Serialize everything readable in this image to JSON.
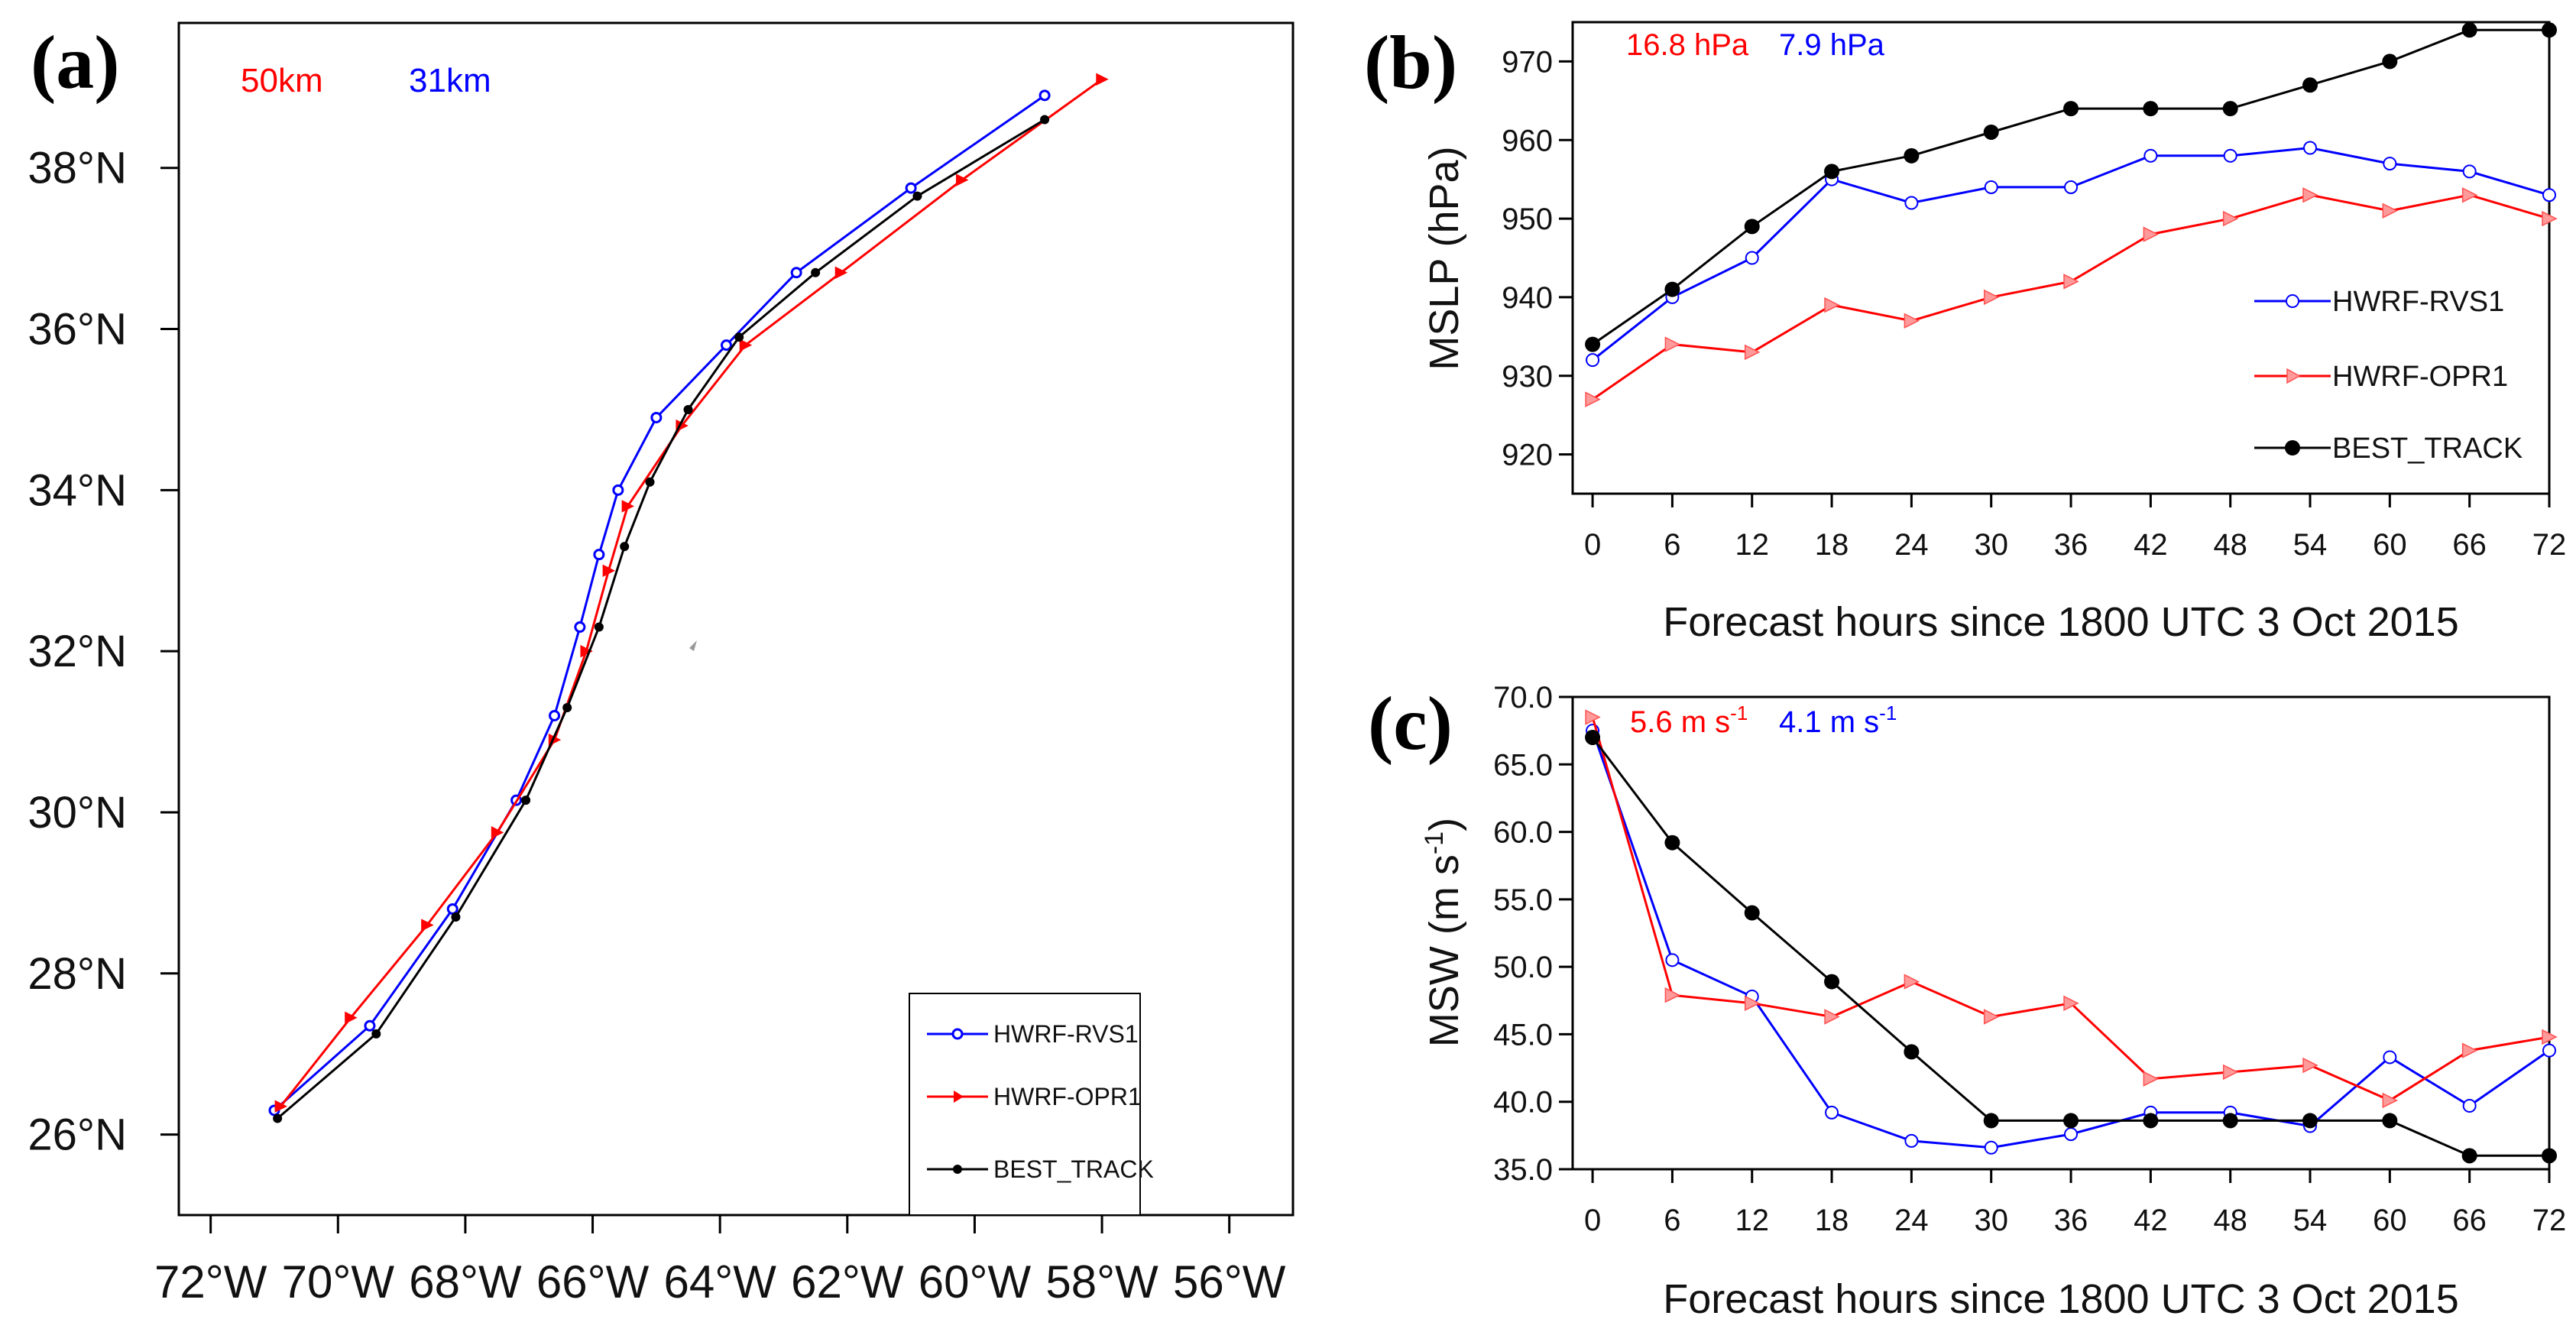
{
  "chart_data": [
    {
      "type": "line",
      "panel_label": "(a)",
      "title": "",
      "annotations": [
        {
          "text": "50km",
          "color": "#ff0000"
        },
        {
          "text": "31km",
          "color": "#0000ff"
        }
      ],
      "xlabel": "",
      "ylabel": "",
      "xlim": [
        -72.5,
        -55
      ],
      "ylim": [
        25,
        39.8
      ],
      "x_ticks": [
        -72,
        -70,
        -68,
        -66,
        -64,
        -62,
        -60,
        -58,
        -56
      ],
      "x_tick_labels": [
        "72°W",
        "70°W",
        "68°W",
        "66°W",
        "64°W",
        "62°W",
        "60°W",
        "58°W",
        "56°W"
      ],
      "y_ticks": [
        26,
        28,
        30,
        32,
        34,
        36,
        38
      ],
      "y_tick_labels": [
        "26°N",
        "28°N",
        "30°N",
        "32°N",
        "34°N",
        "36°N",
        "38°N"
      ],
      "legend": "bottom-right",
      "series": [
        {
          "name": "HWRF-RVS1",
          "color": "#0000ff",
          "marker": "circle-open",
          "x": [
            -71.0,
            -69.5,
            -68.2,
            -67.2,
            -66.6,
            -66.2,
            -65.9,
            -65.6,
            -65.0,
            -63.9,
            -62.8,
            -61.0,
            -58.9
          ],
          "y": [
            26.3,
            27.35,
            28.8,
            30.15,
            31.2,
            32.3,
            33.2,
            34.0,
            34.9,
            35.8,
            36.7,
            37.75,
            38.9
          ]
        },
        {
          "name": "HWRF-OPR1",
          "color": "#ff0000",
          "marker": "triangle-right",
          "x": [
            -70.9,
            -69.8,
            -68.6,
            -67.5,
            -66.6,
            -66.1,
            -65.75,
            -65.45,
            -64.6,
            -63.6,
            -62.1,
            -60.2,
            -58.0
          ],
          "y": [
            26.35,
            27.45,
            28.6,
            29.75,
            30.9,
            32.0,
            33.0,
            33.8,
            34.8,
            35.8,
            36.7,
            37.85,
            39.1
          ]
        },
        {
          "name": "BEST_TRACK",
          "color": "#000000",
          "marker": "circle-filled",
          "x": [
            -70.95,
            -69.4,
            -68.15,
            -67.05,
            -66.4,
            -65.9,
            -65.5,
            -65.1,
            -64.5,
            -63.7,
            -62.5,
            -60.9,
            -58.9
          ],
          "y": [
            26.2,
            27.25,
            28.7,
            30.15,
            31.3,
            32.3,
            33.3,
            34.1,
            35.0,
            35.9,
            36.7,
            37.65,
            38.6
          ]
        }
      ]
    },
    {
      "type": "line",
      "panel_label": "(b)",
      "title": "",
      "annotations": [
        {
          "text": "16.8 hPa",
          "color": "#ff0000"
        },
        {
          "text": "7.9 hPa",
          "color": "#0000ff"
        }
      ],
      "xlabel": "Forecast hours since 1800 UTC 3 Oct 2015",
      "ylabel": "MSLP (hPa)",
      "x": [
        0,
        6,
        12,
        18,
        24,
        30,
        36,
        42,
        48,
        54,
        60,
        66,
        72
      ],
      "xlim": [
        -1.5,
        72
      ],
      "ylim": [
        915,
        975
      ],
      "y_ticks": [
        920,
        930,
        940,
        950,
        960,
        970
      ],
      "y_tick_labels": [
        "920",
        "930",
        "940",
        "950",
        "960",
        "970"
      ],
      "legend": "right-middle",
      "series": [
        {
          "name": "HWRF-RVS1",
          "color": "#0000ff",
          "marker": "circle-open",
          "values": [
            932,
            940,
            945,
            955,
            952,
            954,
            954,
            958,
            958,
            959,
            957,
            956,
            953
          ]
        },
        {
          "name": "HWRF-OPR1",
          "color": "#ff0000",
          "marker": "triangle-right",
          "values": [
            927,
            934,
            933,
            939,
            937,
            940,
            942,
            948,
            950,
            953,
            951,
            953,
            950
          ]
        },
        {
          "name": "BEST_TRACK",
          "color": "#000000",
          "marker": "circle-filled",
          "values": [
            934,
            941,
            949,
            956,
            958,
            961,
            964,
            964,
            964,
            967,
            970,
            974,
            974
          ]
        }
      ]
    },
    {
      "type": "line",
      "panel_label": "(c)",
      "title": "",
      "annotations": [
        {
          "text": "5.6 m s",
          "sup": "-1",
          "color": "#ff0000"
        },
        {
          "text": "4.1 m s",
          "sup": "-1",
          "color": "#0000ff"
        }
      ],
      "xlabel": "Forecast hours since 1800 UTC 3 Oct 2015",
      "ylabel": "MSW (m s",
      "ylabel_sup": "-1",
      "ylabel_end": ")",
      "x": [
        0,
        6,
        12,
        18,
        24,
        30,
        36,
        42,
        48,
        54,
        60,
        66,
        72
      ],
      "xlim": [
        -1.5,
        72
      ],
      "ylim": [
        35,
        70
      ],
      "y_ticks": [
        35,
        40,
        45,
        50,
        55,
        60,
        65,
        70
      ],
      "y_tick_labels": [
        "35.0",
        "40.0",
        "45.0",
        "50.0",
        "55.0",
        "60.0",
        "65.0",
        "70.0"
      ],
      "series": [
        {
          "name": "HWRF-RVS1",
          "color": "#0000ff",
          "marker": "circle-open",
          "values": [
            67.5,
            50.5,
            47.8,
            39.2,
            37.1,
            36.6,
            37.6,
            39.2,
            39.2,
            38.2,
            43.3,
            39.7,
            43.8
          ]
        },
        {
          "name": "HWRF-OPR1",
          "color": "#ff0000",
          "marker": "triangle-right",
          "values": [
            68.5,
            47.9,
            47.3,
            46.3,
            48.9,
            46.3,
            47.3,
            41.7,
            42.2,
            42.7,
            40.1,
            43.8,
            44.8
          ]
        },
        {
          "name": "BEST_TRACK",
          "color": "#000000",
          "marker": "circle-filled",
          "values": [
            67.0,
            59.2,
            54.0,
            48.9,
            43.7,
            38.6,
            38.6,
            38.6,
            38.6,
            38.6,
            38.6,
            36.0,
            36.0
          ]
        }
      ]
    }
  ]
}
